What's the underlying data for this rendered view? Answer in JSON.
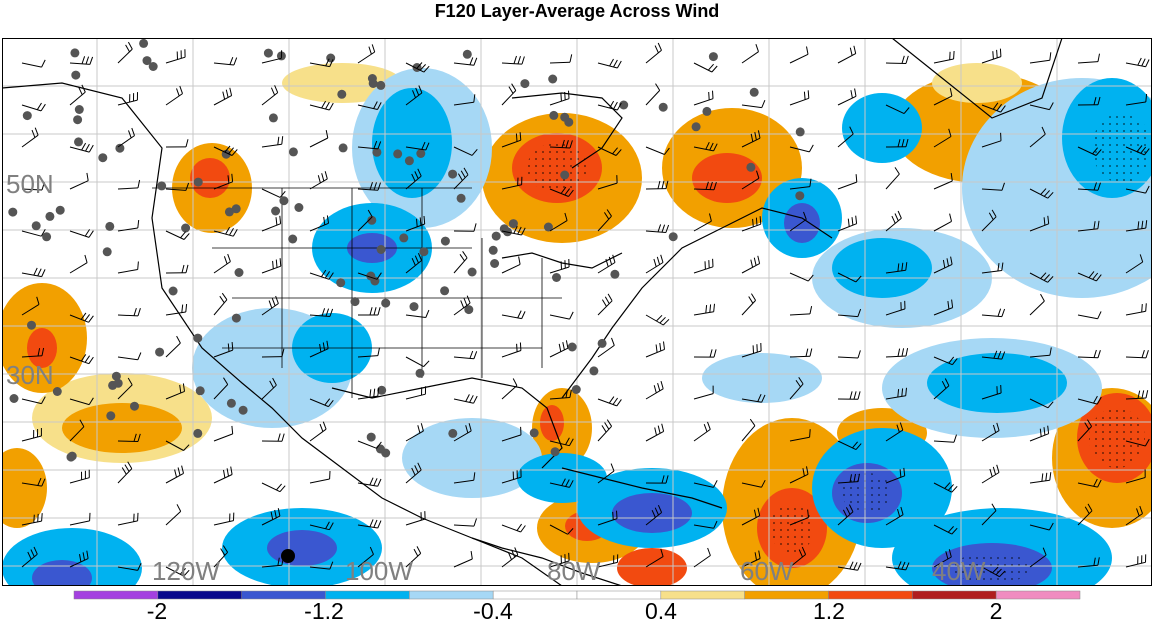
{
  "title": "F120 Layer-Average Across Wind",
  "map": {
    "lat_labels": [
      "50N",
      "30N"
    ],
    "lon_labels": [
      "120W",
      "100W",
      "80W",
      "60W",
      "40W"
    ]
  },
  "colorbar": {
    "colors": [
      "#a441e0",
      "#0a0a8c",
      "#3a57d0",
      "#00b2f0",
      "#a6d8f5",
      "#ffffff",
      "#ffffff",
      "#f7e08a",
      "#f2a000",
      "#f24a10",
      "#b01e1e",
      "#f08cc0"
    ],
    "tick_labels": [
      "-2",
      "-1.2",
      "-0.4",
      "0.4",
      "1.2",
      "2"
    ]
  },
  "palette": {
    "pos1": "#f7e08a",
    "pos2": "#f2a000",
    "pos3": "#f24a10",
    "neg1": "#a6d8f5",
    "neg2": "#00b2f0",
    "neg3": "#3a57d0"
  }
}
